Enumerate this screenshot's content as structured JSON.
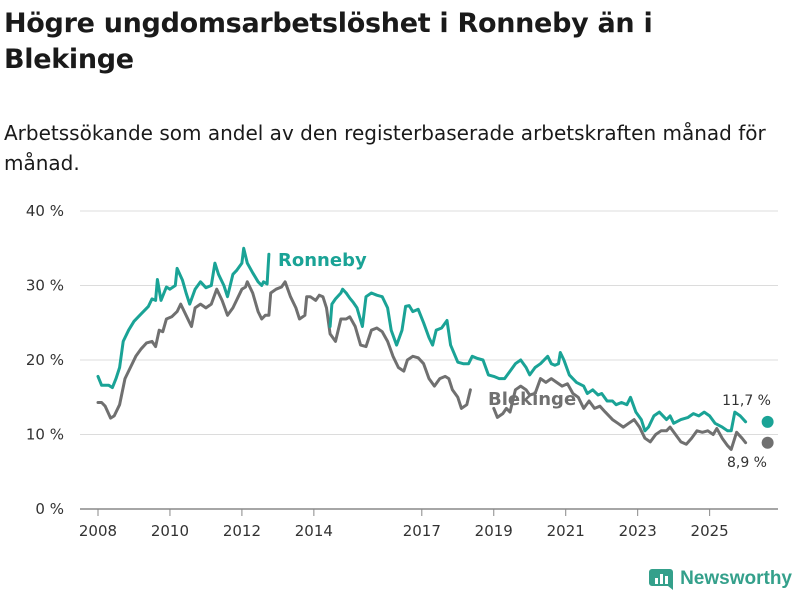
{
  "title": "Högre ungdomsarbetslöshet i Ronneby än i Blekinge",
  "subtitle": "Arbetssökande som andel av den registerbaserade arbetskraften månad för månad.",
  "brand": {
    "name": "Newsworthy"
  },
  "colors": {
    "ronneby": "#1aa396",
    "blekinge": "#707070",
    "grid": "#dcdcdc",
    "brand": "#34a08b"
  },
  "chart_data": {
    "type": "line",
    "title": "Högre ungdomsarbetslöshet i Ronneby än i Blekinge",
    "xlabel": "",
    "ylabel": "",
    "xlim": [
      2007.5,
      2026.9
    ],
    "ylim": [
      0,
      40
    ],
    "x_ticks": [
      2008,
      2010,
      2012,
      2014,
      2017,
      2019,
      2021,
      2023,
      2025
    ],
    "y_ticks": [
      {
        "value": 0,
        "label": "0 %"
      },
      {
        "value": 10,
        "label": "10 %"
      },
      {
        "value": 20,
        "label": "20 %"
      },
      {
        "value": 30,
        "label": "30 %"
      },
      {
        "value": 40,
        "label": "40 %"
      }
    ],
    "series": [
      {
        "name": "Ronneby",
        "end_label": "11,7 %",
        "points": [
          [
            2008.0,
            17.8
          ],
          [
            2008.1,
            16.6
          ],
          [
            2008.3,
            16.6
          ],
          [
            2008.4,
            16.3
          ],
          [
            2008.5,
            17.5
          ],
          [
            2008.6,
            19.0
          ],
          [
            2008.7,
            22.5
          ],
          [
            2008.85,
            24.0
          ],
          [
            2009.0,
            25.2
          ],
          [
            2009.2,
            26.2
          ],
          [
            2009.4,
            27.2
          ],
          [
            2009.5,
            28.2
          ],
          [
            2009.6,
            28.0
          ],
          [
            2009.65,
            30.8
          ],
          [
            2009.75,
            28.0
          ],
          [
            2009.9,
            29.8
          ],
          [
            2010.0,
            29.5
          ],
          [
            2010.15,
            30.0
          ],
          [
            2010.2,
            32.3
          ],
          [
            2010.35,
            30.7
          ],
          [
            2010.45,
            29.0
          ],
          [
            2010.55,
            27.5
          ],
          [
            2010.7,
            29.5
          ],
          [
            2010.85,
            30.5
          ],
          [
            2011.0,
            29.7
          ],
          [
            2011.15,
            30.0
          ],
          [
            2011.25,
            33.0
          ],
          [
            2011.35,
            31.5
          ],
          [
            2011.5,
            30.0
          ],
          [
            2011.6,
            28.5
          ],
          [
            2011.75,
            31.5
          ],
          [
            2011.85,
            32.0
          ],
          [
            2012.0,
            33.0
          ],
          [
            2012.05,
            35.0
          ],
          [
            2012.15,
            33.0
          ],
          [
            2012.3,
            31.7
          ],
          [
            2012.45,
            30.5
          ],
          [
            2012.55,
            30.0
          ],
          [
            2012.6,
            30.5
          ],
          [
            2012.7,
            30.2
          ],
          [
            2012.75,
            34.2
          ],
          null,
          [
            2014.45,
            24.5
          ],
          [
            2014.5,
            27.5
          ],
          [
            2014.6,
            28.2
          ],
          [
            2014.75,
            29.0
          ],
          [
            2014.8,
            29.5
          ],
          [
            2014.9,
            29.0
          ],
          [
            2015.0,
            28.3
          ],
          [
            2015.1,
            27.7
          ],
          [
            2015.2,
            27.0
          ],
          [
            2015.35,
            24.5
          ],
          [
            2015.45,
            28.5
          ],
          [
            2015.6,
            29.0
          ],
          [
            2015.75,
            28.7
          ],
          [
            2015.9,
            28.5
          ],
          [
            2016.05,
            27.0
          ],
          [
            2016.15,
            24.0
          ],
          [
            2016.3,
            22.0
          ],
          [
            2016.45,
            24.0
          ],
          [
            2016.55,
            27.2
          ],
          [
            2016.65,
            27.3
          ],
          [
            2016.75,
            26.5
          ],
          [
            2016.9,
            26.8
          ],
          [
            2017.05,
            25.0
          ],
          [
            2017.2,
            23.0
          ],
          [
            2017.3,
            22.0
          ],
          [
            2017.4,
            24.0
          ],
          [
            2017.55,
            24.3
          ],
          [
            2017.7,
            25.3
          ],
          [
            2017.8,
            22.0
          ],
          [
            2018.0,
            19.7
          ],
          [
            2018.15,
            19.5
          ],
          [
            2018.3,
            19.5
          ],
          [
            2018.4,
            20.5
          ],
          [
            2018.55,
            20.2
          ],
          [
            2018.7,
            20.0
          ],
          [
            2018.85,
            18.0
          ],
          [
            2019.0,
            17.8
          ],
          [
            2019.15,
            17.5
          ],
          [
            2019.3,
            17.5
          ],
          [
            2019.45,
            18.5
          ],
          [
            2019.6,
            19.5
          ],
          [
            2019.75,
            20.0
          ],
          [
            2019.9,
            19.0
          ],
          [
            2020.0,
            18.0
          ],
          [
            2020.15,
            19.0
          ],
          [
            2020.3,
            19.5
          ],
          [
            2020.5,
            20.5
          ],
          [
            2020.6,
            19.5
          ],
          [
            2020.7,
            19.3
          ],
          [
            2020.8,
            19.5
          ],
          [
            2020.85,
            21.0
          ],
          [
            2020.95,
            20.0
          ],
          [
            2021.1,
            18.0
          ],
          [
            2021.3,
            17.0
          ],
          [
            2021.5,
            16.5
          ],
          [
            2021.6,
            15.5
          ],
          [
            2021.75,
            16.0
          ],
          [
            2021.9,
            15.3
          ],
          [
            2022.0,
            15.5
          ],
          [
            2022.15,
            14.5
          ],
          [
            2022.3,
            14.5
          ],
          [
            2022.4,
            14.0
          ],
          [
            2022.55,
            14.3
          ],
          [
            2022.7,
            14.0
          ],
          [
            2022.8,
            15.0
          ],
          [
            2022.95,
            13.0
          ],
          [
            2023.1,
            12.0
          ],
          [
            2023.2,
            10.5
          ],
          [
            2023.3,
            11.0
          ],
          [
            2023.45,
            12.5
          ],
          [
            2023.6,
            13.0
          ],
          [
            2023.8,
            12.0
          ],
          [
            2023.9,
            12.5
          ],
          [
            2024.0,
            11.5
          ],
          [
            2024.2,
            12.0
          ],
          [
            2024.4,
            12.3
          ],
          [
            2024.55,
            12.8
          ],
          [
            2024.7,
            12.5
          ],
          [
            2024.85,
            13.0
          ],
          [
            2025.0,
            12.5
          ],
          [
            2025.15,
            11.5
          ],
          [
            2025.35,
            11.0
          ],
          [
            2025.5,
            10.5
          ],
          [
            2025.6,
            10.5
          ],
          [
            2025.7,
            13.0
          ],
          [
            2025.85,
            12.5
          ],
          [
            2026.0,
            11.7
          ]
        ]
      },
      {
        "name": "Blekinge",
        "end_label": "8,9 %",
        "points": [
          [
            2008.0,
            14.3
          ],
          [
            2008.1,
            14.3
          ],
          [
            2008.2,
            13.8
          ],
          [
            2008.35,
            12.2
          ],
          [
            2008.45,
            12.5
          ],
          [
            2008.6,
            14.0
          ],
          [
            2008.75,
            17.5
          ],
          [
            2008.9,
            19.0
          ],
          [
            2009.05,
            20.5
          ],
          [
            2009.2,
            21.5
          ],
          [
            2009.35,
            22.3
          ],
          [
            2009.5,
            22.5
          ],
          [
            2009.6,
            21.8
          ],
          [
            2009.7,
            24.0
          ],
          [
            2009.8,
            23.8
          ],
          [
            2009.9,
            25.5
          ],
          [
            2010.05,
            25.8
          ],
          [
            2010.2,
            26.5
          ],
          [
            2010.3,
            27.5
          ],
          [
            2010.4,
            26.5
          ],
          [
            2010.55,
            25.0
          ],
          [
            2010.6,
            24.5
          ],
          [
            2010.7,
            27.0
          ],
          [
            2010.85,
            27.5
          ],
          [
            2011.0,
            27.0
          ],
          [
            2011.15,
            27.5
          ],
          [
            2011.3,
            29.5
          ],
          [
            2011.45,
            28.0
          ],
          [
            2011.6,
            26.0
          ],
          [
            2011.75,
            27.0
          ],
          [
            2011.9,
            28.5
          ],
          [
            2012.0,
            29.5
          ],
          [
            2012.1,
            29.8
          ],
          [
            2012.15,
            30.5
          ],
          [
            2012.3,
            29.0
          ],
          [
            2012.45,
            26.5
          ],
          [
            2012.55,
            25.5
          ],
          [
            2012.65,
            26.0
          ],
          [
            2012.75,
            26.0
          ],
          [
            2012.8,
            29.0
          ],
          [
            2012.95,
            29.5
          ],
          [
            2013.1,
            29.8
          ],
          [
            2013.2,
            30.5
          ],
          [
            2013.35,
            28.5
          ],
          [
            2013.5,
            27.0
          ],
          [
            2013.6,
            25.5
          ],
          [
            2013.75,
            26.0
          ],
          [
            2013.8,
            28.5
          ],
          [
            2013.9,
            28.5
          ],
          [
            2014.05,
            28.0
          ],
          [
            2014.15,
            28.7
          ],
          [
            2014.25,
            28.5
          ],
          [
            2014.35,
            27.0
          ],
          [
            2014.45,
            23.5
          ],
          [
            2014.6,
            22.5
          ],
          [
            2014.75,
            25.5
          ],
          [
            2014.9,
            25.5
          ],
          [
            2015.0,
            25.8
          ],
          [
            2015.15,
            24.5
          ],
          [
            2015.3,
            22.0
          ],
          [
            2015.45,
            21.8
          ],
          [
            2015.6,
            24.0
          ],
          [
            2015.75,
            24.3
          ],
          [
            2015.9,
            23.8
          ],
          [
            2016.05,
            22.5
          ],
          [
            2016.2,
            20.5
          ],
          [
            2016.35,
            19.0
          ],
          [
            2016.5,
            18.5
          ],
          [
            2016.6,
            20.0
          ],
          [
            2016.75,
            20.5
          ],
          [
            2016.9,
            20.3
          ],
          [
            2017.05,
            19.5
          ],
          [
            2017.2,
            17.5
          ],
          [
            2017.35,
            16.5
          ],
          [
            2017.5,
            17.5
          ],
          [
            2017.65,
            17.8
          ],
          [
            2017.75,
            17.5
          ],
          [
            2017.85,
            16.0
          ],
          [
            2018.0,
            15.0
          ],
          [
            2018.1,
            13.5
          ],
          [
            2018.25,
            14.0
          ],
          [
            2018.35,
            16.0
          ],
          null,
          [
            2019.0,
            13.5
          ],
          [
            2019.1,
            12.3
          ],
          [
            2019.25,
            12.8
          ],
          [
            2019.35,
            13.5
          ],
          [
            2019.45,
            13.0
          ],
          [
            2019.6,
            16.0
          ],
          [
            2019.75,
            16.5
          ],
          [
            2019.9,
            16.0
          ],
          [
            2020.0,
            15.3
          ],
          [
            2020.15,
            15.5
          ],
          [
            2020.3,
            17.5
          ],
          [
            2020.45,
            17.0
          ],
          [
            2020.6,
            17.5
          ],
          [
            2020.75,
            17.0
          ],
          [
            2020.9,
            16.5
          ],
          [
            2021.05,
            16.8
          ],
          [
            2021.2,
            15.5
          ],
          [
            2021.35,
            15.0
          ],
          [
            2021.5,
            13.5
          ],
          [
            2021.65,
            14.5
          ],
          [
            2021.8,
            13.5
          ],
          [
            2021.95,
            13.8
          ],
          [
            2022.1,
            13.0
          ],
          [
            2022.3,
            12.0
          ],
          [
            2022.45,
            11.5
          ],
          [
            2022.6,
            11.0
          ],
          [
            2022.75,
            11.5
          ],
          [
            2022.9,
            12.0
          ],
          [
            2023.05,
            11.0
          ],
          [
            2023.2,
            9.5
          ],
          [
            2023.35,
            9.0
          ],
          [
            2023.5,
            10.0
          ],
          [
            2023.65,
            10.5
          ],
          [
            2023.8,
            10.5
          ],
          [
            2023.9,
            11.0
          ],
          [
            2024.05,
            10.0
          ],
          [
            2024.2,
            9.0
          ],
          [
            2024.35,
            8.7
          ],
          [
            2024.5,
            9.5
          ],
          [
            2024.65,
            10.5
          ],
          [
            2024.8,
            10.3
          ],
          [
            2024.95,
            10.5
          ],
          [
            2025.1,
            10.0
          ],
          [
            2025.2,
            10.8
          ],
          [
            2025.35,
            9.5
          ],
          [
            2025.5,
            8.5
          ],
          [
            2025.6,
            8.0
          ],
          [
            2025.75,
            10.3
          ],
          [
            2025.9,
            9.5
          ],
          [
            2026.0,
            8.9
          ]
        ]
      }
    ]
  }
}
